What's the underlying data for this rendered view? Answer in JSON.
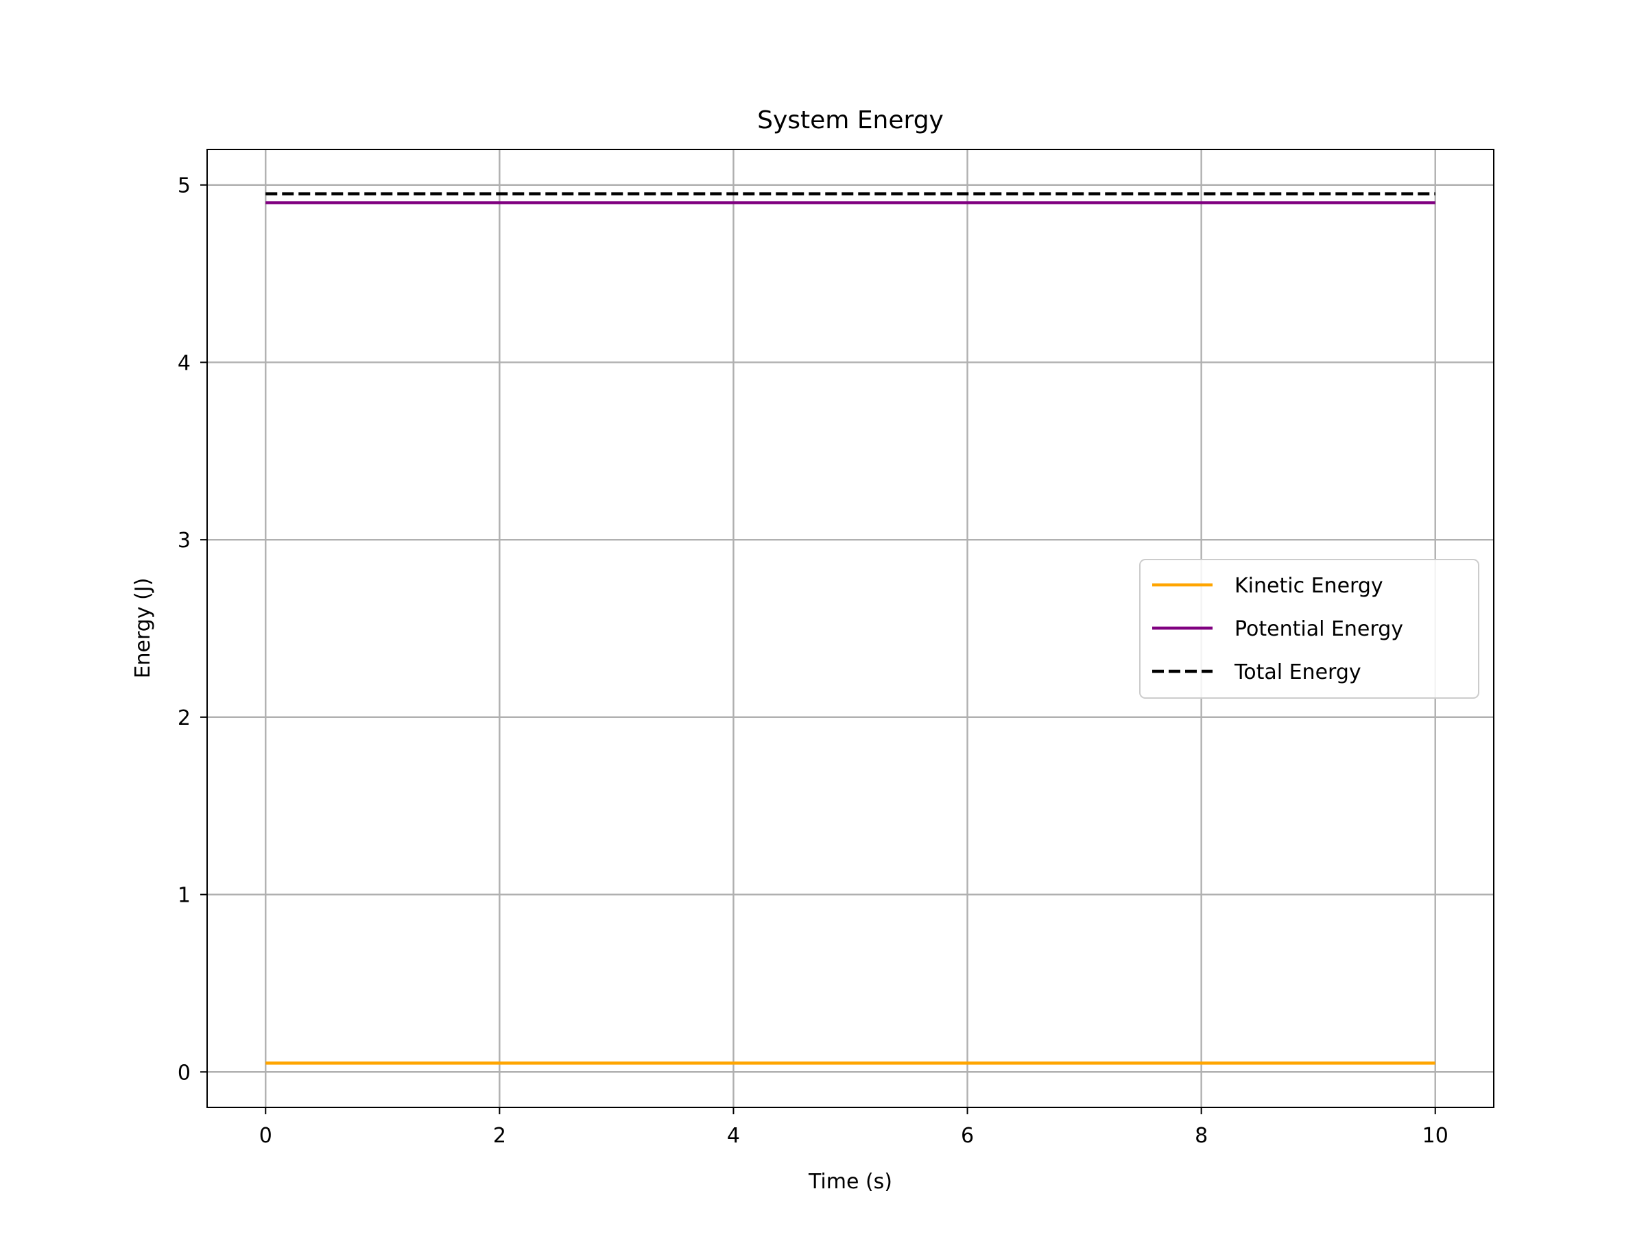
{
  "chart_data": {
    "type": "line",
    "title": "System Energy",
    "xlabel": "Time (s)",
    "ylabel": "Energy (J)",
    "xlim": [
      -0.5,
      10.5
    ],
    "ylim": [
      -0.2,
      5.2
    ],
    "xticks": [
      0,
      2,
      4,
      6,
      8,
      10
    ],
    "xtick_labels": [
      "0",
      "2",
      "4",
      "6",
      "8",
      "10"
    ],
    "yticks": [
      0,
      1,
      2,
      3,
      4,
      5
    ],
    "ytick_labels": [
      "0",
      "1",
      "2",
      "3",
      "4",
      "5"
    ],
    "grid": true,
    "legend_position": "center-right",
    "series": [
      {
        "name": "Kinetic Energy",
        "color": "#ffa500",
        "style": "solid",
        "x": [
          0,
          10
        ],
        "y": [
          0.05,
          0.05
        ]
      },
      {
        "name": "Potential Energy",
        "color": "#800080",
        "style": "solid",
        "x": [
          0,
          10
        ],
        "y": [
          4.9,
          4.9
        ]
      },
      {
        "name": "Total Energy",
        "color": "#000000",
        "style": "dashed",
        "x": [
          0,
          10
        ],
        "y": [
          4.95,
          4.95
        ]
      }
    ]
  }
}
